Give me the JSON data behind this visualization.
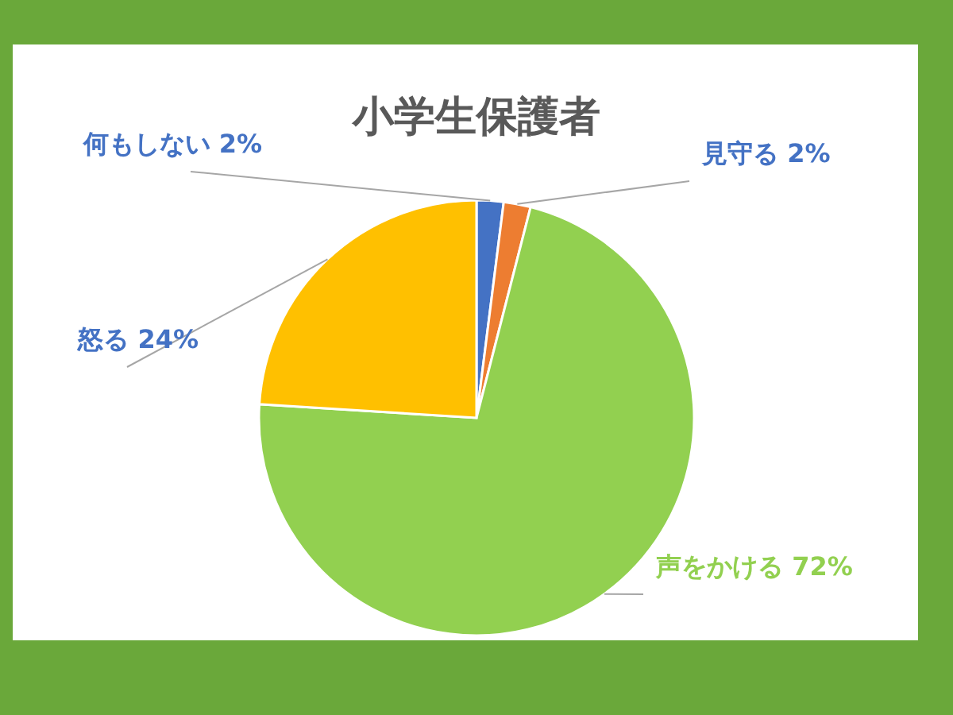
{
  "chart_data": {
    "type": "pie",
    "title": "小学生保護者",
    "categories": [
      "何もしない",
      "見守る",
      "声をかける",
      "怒る"
    ],
    "values": [
      2,
      2,
      72,
      24
    ],
    "colors": [
      "#4472c4",
      "#ed7d31",
      "#92d050",
      "#ffc000"
    ],
    "value_labels": [
      "2%",
      "2%",
      "72%",
      "24%"
    ]
  }
}
